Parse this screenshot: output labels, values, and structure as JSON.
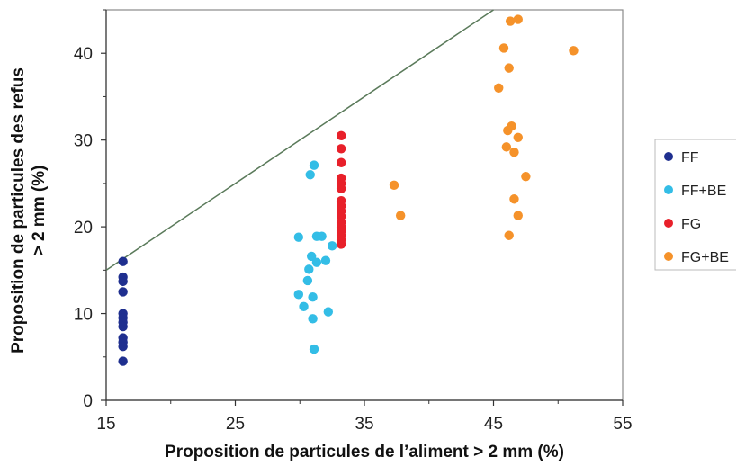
{
  "chart_data": {
    "type": "scatter",
    "xlabel": "Proposition de particules de l’aliment > 2 mm (%)",
    "ylabel_line1": "Proposition de particules des refus",
    "ylabel_line2": "> 2 mm (%)",
    "xlim": [
      15,
      55
    ],
    "ylim": [
      0,
      45
    ],
    "x_ticks": [
      15,
      25,
      35,
      45,
      55
    ],
    "y_ticks": [
      0,
      10,
      20,
      30,
      40
    ],
    "grid": false,
    "legend_position": "right",
    "reference_line": {
      "from": [
        15,
        15
      ],
      "to": [
        45,
        45
      ],
      "color": "#5a7a5a"
    },
    "series": [
      {
        "name": "FF",
        "color": "#1f2f8f",
        "points": [
          [
            16.3,
            16.0
          ],
          [
            16.3,
            14.2
          ],
          [
            16.3,
            13.7
          ],
          [
            16.3,
            12.5
          ],
          [
            16.3,
            10.0
          ],
          [
            16.3,
            9.5
          ],
          [
            16.3,
            9.0
          ],
          [
            16.3,
            8.5
          ],
          [
            16.3,
            7.2
          ],
          [
            16.3,
            6.7
          ],
          [
            16.3,
            6.2
          ],
          [
            16.3,
            4.5
          ]
        ]
      },
      {
        "name": "FF+BE",
        "color": "#33bde6",
        "points": [
          [
            31.1,
            27.1
          ],
          [
            30.8,
            26.0
          ],
          [
            29.9,
            18.8
          ],
          [
            31.3,
            18.9
          ],
          [
            31.7,
            18.9
          ],
          [
            32.5,
            17.8
          ],
          [
            30.9,
            16.6
          ],
          [
            31.3,
            15.9
          ],
          [
            32.0,
            16.1
          ],
          [
            30.7,
            15.1
          ],
          [
            30.6,
            13.8
          ],
          [
            29.9,
            12.2
          ],
          [
            31.0,
            11.9
          ],
          [
            30.3,
            10.8
          ],
          [
            32.2,
            10.2
          ],
          [
            31.0,
            9.4
          ],
          [
            31.1,
            5.9
          ]
        ]
      },
      {
        "name": "FG",
        "color": "#e8202a",
        "points": [
          [
            33.2,
            30.5
          ],
          [
            33.2,
            29.0
          ],
          [
            33.2,
            27.4
          ],
          [
            33.2,
            25.6
          ],
          [
            33.2,
            25.0
          ],
          [
            33.2,
            24.4
          ],
          [
            33.2,
            23.0
          ],
          [
            33.2,
            22.4
          ],
          [
            33.2,
            21.8
          ],
          [
            33.2,
            21.2
          ],
          [
            33.2,
            20.5
          ],
          [
            33.2,
            20.0
          ],
          [
            33.2,
            19.5
          ],
          [
            33.2,
            19.0
          ],
          [
            33.2,
            18.5
          ],
          [
            33.2,
            18.0
          ]
        ]
      },
      {
        "name": "FG+BE",
        "color": "#f5922a",
        "points": [
          [
            37.3,
            24.8
          ],
          [
            37.8,
            21.3
          ],
          [
            45.4,
            36.0
          ],
          [
            45.8,
            40.6
          ],
          [
            46.2,
            38.3
          ],
          [
            46.3,
            43.7
          ],
          [
            46.9,
            43.9
          ],
          [
            46.1,
            31.1
          ],
          [
            46.4,
            31.6
          ],
          [
            46.9,
            30.3
          ],
          [
            46.0,
            29.2
          ],
          [
            46.6,
            28.6
          ],
          [
            47.5,
            25.8
          ],
          [
            46.6,
            23.2
          ],
          [
            46.9,
            21.3
          ],
          [
            46.2,
            19.0
          ],
          [
            51.2,
            40.3
          ]
        ]
      }
    ]
  }
}
